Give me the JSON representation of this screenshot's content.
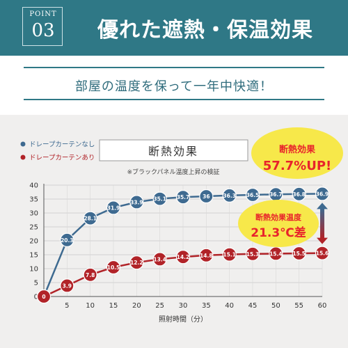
{
  "header": {
    "point_label": "POINT",
    "point_number": "03",
    "title": "優れた遮熱・保温効果"
  },
  "subtitle": "部屋の温度を保って一年中快適！",
  "colors": {
    "header_bg": "#2f7886",
    "series_no_curtain": "#3e6a90",
    "series_curtain": "#b12328",
    "callout_red": "#e8232b",
    "callout_yellow": "#f7e84a"
  },
  "chart_data": {
    "type": "line",
    "title": "断熱効果",
    "subtitle": "※ブラックパネル温度上昇の検証",
    "xlabel": "照射時間（分）",
    "ylabel": "",
    "x": [
      0,
      5,
      10,
      15,
      20,
      25,
      30,
      35,
      40,
      45,
      50,
      55,
      60
    ],
    "xlim": [
      0,
      60
    ],
    "ylim": [
      0,
      40
    ],
    "yticks": [
      0,
      5,
      10,
      15,
      20,
      25,
      30,
      35,
      40
    ],
    "grid": true,
    "legend_position": "top-left",
    "series": [
      {
        "name": "ドレープカーテンなし",
        "color": "#3e6a90",
        "values": [
          0,
          20.3,
          28.1,
          31.9,
          33.9,
          35.1,
          35.7,
          36,
          36.3,
          36.5,
          36.7,
          36.8,
          36.9
        ],
        "labels": [
          "0",
          "20.3",
          "28.1",
          "31.9",
          "33.9",
          "35.1",
          "35.7",
          "36",
          "36.3",
          "36.5",
          "36.7",
          "36.8",
          "36.9"
        ]
      },
      {
        "name": "ドレープカーテンあり",
        "color": "#b12328",
        "values": [
          0,
          3.9,
          7.8,
          10.5,
          12.2,
          13.4,
          14.2,
          14.8,
          15.1,
          15.3,
          15.4,
          15.5,
          15.6
        ],
        "labels": [
          "0",
          "3.9",
          "7.8",
          "10.5",
          "12.2",
          "13.4",
          "14.2",
          "14.8",
          "15.1",
          "15.3",
          "15.4",
          "15.5",
          "15.6"
        ]
      }
    ],
    "annotations": {
      "effect_label": "断熱効果",
      "effect_value": "57.7%UP!",
      "temp_label": "断熱効果温度",
      "temp_value": "21.3℃差"
    }
  }
}
